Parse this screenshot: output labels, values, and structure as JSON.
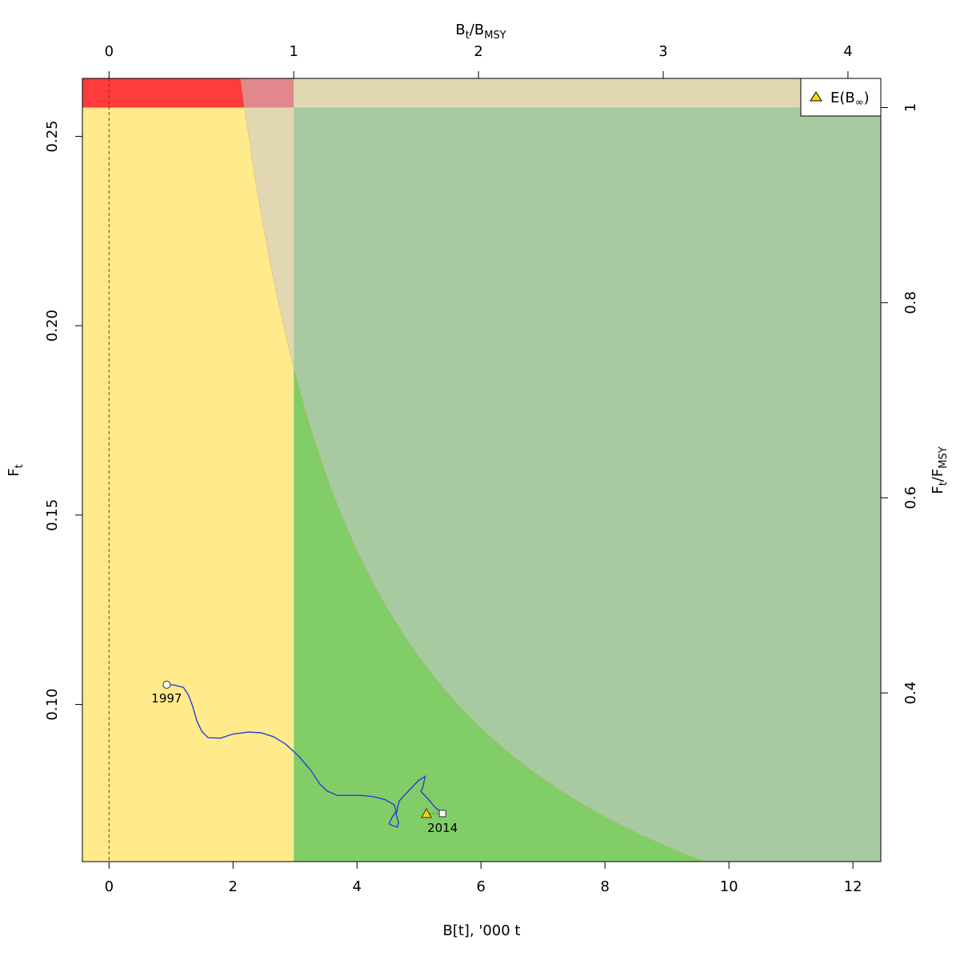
{
  "chart_data": {
    "type": "line",
    "title": "",
    "xlabel": "B[t], '000 t",
    "ylabel": "F",
    "ylabel_sub": "t",
    "top_xlabel": {
      "main": "B",
      "sub1": "t",
      "sep": "/B",
      "sub2": "MSY"
    },
    "right_ylabel": {
      "main": "F",
      "sub1": "t",
      "sep": "/F",
      "sub2": "MSY"
    },
    "xlim": [
      -0.43,
      12.45
    ],
    "ylim": [
      0.0585,
      0.2653
    ],
    "x_ticks": [
      0,
      2,
      4,
      6,
      8,
      10,
      12
    ],
    "y_ticks": [
      0.1,
      0.15,
      0.2,
      0.25
    ],
    "y_tick_labels": [
      "0.10",
      "0.15",
      "0.20",
      "0.25"
    ],
    "top_ticks": [
      0,
      1,
      2,
      3,
      4
    ],
    "right_ticks": [
      0.4,
      0.6,
      0.8,
      1
    ],
    "right_tick_labels": [
      "0.4",
      "0.6",
      "0.8",
      "1"
    ],
    "bmsy": 2.98,
    "fmsy": 0.2576,
    "grid": false,
    "legend": {
      "position": "top-right",
      "label": "E(B",
      "label_symbol": "∞",
      "label_close": ")"
    },
    "zones": {
      "colors": {
        "red": "#ff3b3b",
        "yellow": "#ffea8c",
        "green": "#81cd67",
        "pink": "#e5a5a5",
        "beige": "#e0dcc0",
        "sage": "#bcd4b3"
      }
    },
    "series": [
      {
        "color": "#2b3fcf",
        "points": [
          [
            0.93,
            0.1052
          ],
          [
            1.03,
            0.1052
          ],
          [
            1.2,
            0.1045
          ],
          [
            1.28,
            0.1025
          ],
          [
            1.35,
            0.0995
          ],
          [
            1.42,
            0.0955
          ],
          [
            1.5,
            0.0928
          ],
          [
            1.6,
            0.0912
          ],
          [
            1.8,
            0.0911
          ],
          [
            2.0,
            0.0922
          ],
          [
            2.25,
            0.0927
          ],
          [
            2.45,
            0.0925
          ],
          [
            2.65,
            0.0915
          ],
          [
            2.85,
            0.0895
          ],
          [
            3.05,
            0.0865
          ],
          [
            3.25,
            0.0827
          ],
          [
            3.4,
            0.079
          ],
          [
            3.52,
            0.0771
          ],
          [
            3.68,
            0.076
          ],
          [
            3.85,
            0.076
          ],
          [
            4.05,
            0.076
          ],
          [
            4.25,
            0.0757
          ],
          [
            4.45,
            0.0749
          ],
          [
            4.6,
            0.0735
          ],
          [
            4.63,
            0.0718
          ],
          [
            4.56,
            0.07
          ],
          [
            4.52,
            0.0685
          ],
          [
            4.57,
            0.068
          ],
          [
            4.65,
            0.0676
          ],
          [
            4.67,
            0.0688
          ],
          [
            4.63,
            0.071
          ],
          [
            4.68,
            0.0745
          ],
          [
            4.85,
            0.0775
          ],
          [
            5.0,
            0.08
          ],
          [
            5.1,
            0.081
          ],
          [
            5.06,
            0.078
          ],
          [
            5.03,
            0.077
          ],
          [
            5.15,
            0.075
          ],
          [
            5.25,
            0.073
          ],
          [
            5.38,
            0.0712
          ]
        ]
      }
    ],
    "points": {
      "start": {
        "label": "1997",
        "x": 0.93,
        "y": 0.1052
      },
      "end": {
        "label": "2014",
        "x": 5.38,
        "y": 0.0712
      },
      "expected": {
        "x": 5.12,
        "y": 0.0712
      }
    }
  }
}
